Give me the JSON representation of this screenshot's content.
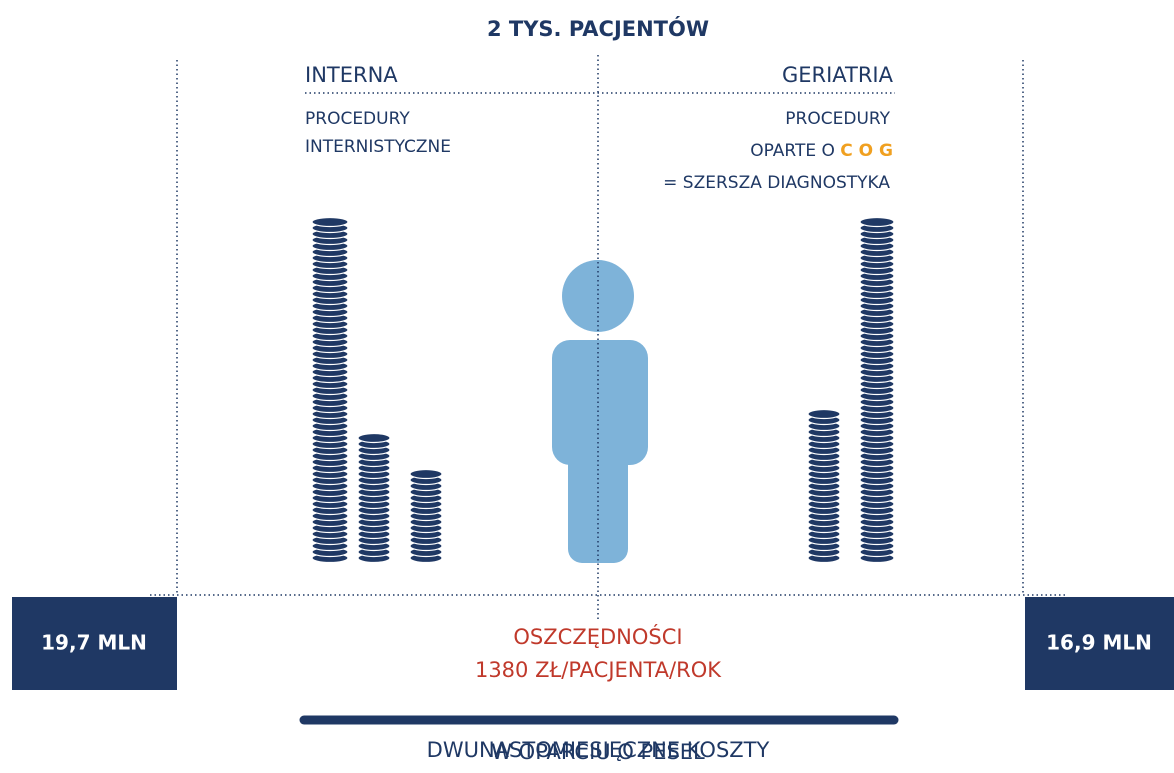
{
  "header": {
    "title": "2 TYS. PACJENTÓW"
  },
  "left": {
    "title": "INTERNA",
    "lines": [
      "PROCEDURY",
      "INTERNISTYCZNE"
    ],
    "cost": "19,7 MLN"
  },
  "right": {
    "title": "GERIATRIA",
    "lines": [
      "PROCEDURY",
      "OPARTE O",
      "C O G",
      "= SZERSZA DIAGNOSTYKA"
    ],
    "cost": "16,9 MLN"
  },
  "savings": {
    "title": "OSZCZĘDNOŚCI",
    "amount": "1380 ZŁ/PACJENTA/ROK"
  },
  "footer": {
    "lines": [
      "DWUNASTOMIESIĘCZNE KOSZTY",
      "W OPARCIU O PESEL"
    ]
  }
}
